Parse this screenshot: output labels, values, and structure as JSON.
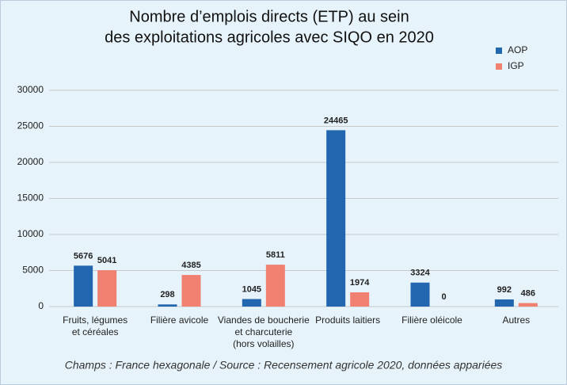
{
  "chart_data": {
    "type": "bar",
    "title": [
      "Nombre d’emplois directs (ETP) au sein",
      "des exploitations agricoles avec SIQO en 2020"
    ],
    "categories": [
      [
        "Fruits, légumes",
        "et céréales"
      ],
      [
        "Filière avicole"
      ],
      [
        "Viandes de boucherie",
        "et charcuterie",
        "(hors volailles)"
      ],
      [
        "Produits laitiers"
      ],
      [
        "Filière oléicole"
      ],
      [
        "Autres"
      ]
    ],
    "series": [
      {
        "name": "AOP",
        "color": "#2266b0",
        "values": [
          5676,
          298,
          1045,
          24465,
          3324,
          992
        ]
      },
      {
        "name": "IGP",
        "color": "#f08070",
        "values": [
          5041,
          4385,
          5811,
          1974,
          0,
          486
        ]
      }
    ],
    "ylim": [
      0,
      30000
    ],
    "yticks": [
      0,
      5000,
      10000,
      15000,
      20000,
      25000,
      30000
    ],
    "grid": true,
    "legend": "top-right",
    "caption": "Champs : France hexagonale / Source : Recensement agricole 2020, données appariées"
  }
}
